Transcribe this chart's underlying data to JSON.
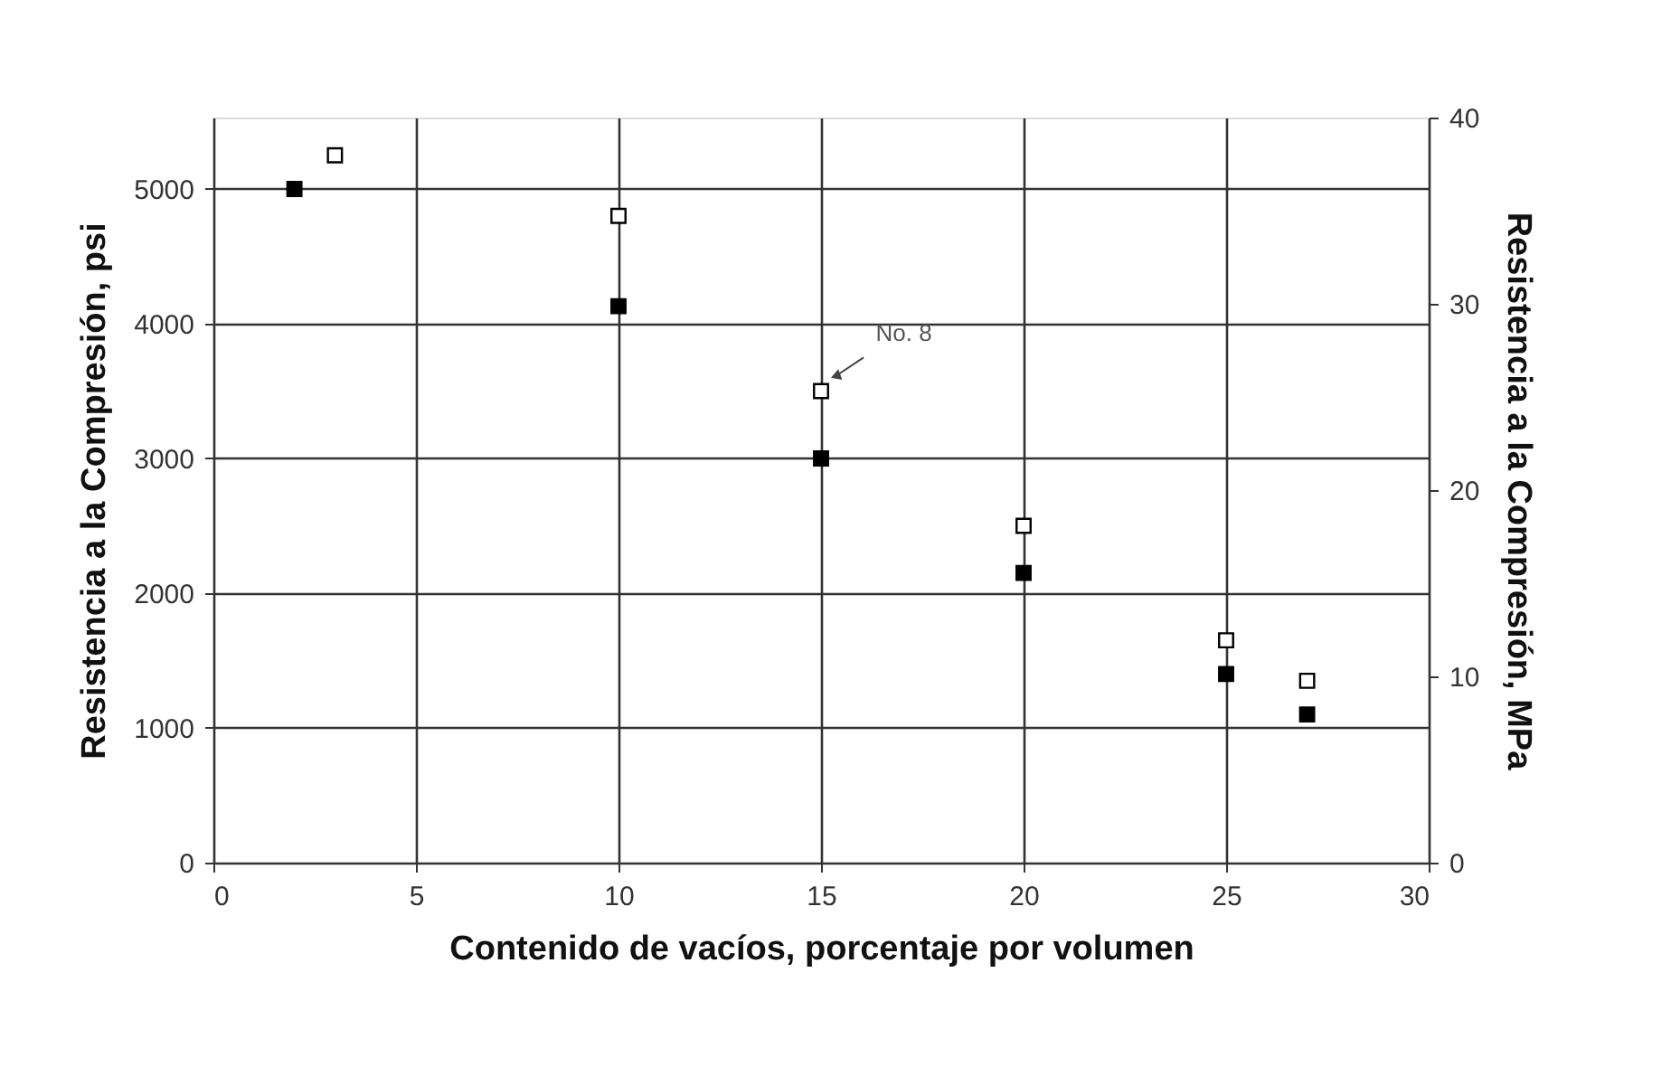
{
  "chart_data": {
    "type": "scatter",
    "xlabel": "Contenido de vacíos, porcentaje por volumen",
    "ylabel": "Resistencia a la Compresión, psi",
    "y2label": "Resistencia a la Compresión, MPa",
    "series": [
      {
        "color": "#000000",
        "x": [
          2,
          10,
          15,
          20,
          25,
          27
        ],
        "values": [
          5000,
          4130,
          3000,
          2150,
          1400,
          1100
        ]
      },
      {
        "color": "#000000",
        "x": [
          3,
          10,
          15,
          20,
          25,
          27
        ],
        "values": [
          5250,
          4800,
          3500,
          2500,
          1650,
          1350
        ]
      }
    ],
    "xlim": [
      0,
      30
    ],
    "xticks": [
      0,
      5,
      10,
      15,
      20,
      25,
      30
    ],
    "ylim": [
      0,
      5530
    ],
    "yticks": [
      0,
      1000,
      2000,
      3000,
      4000,
      5000
    ],
    "y2lim": [
      0,
      40
    ],
    "y2ticks": [
      0,
      10,
      20,
      30,
      40
    ],
    "annotations": [
      {
        "text": "No. 8",
        "x": 15,
        "y": 3500
      }
    ],
    "grid": true,
    "legend": false,
    "marker": "square"
  }
}
